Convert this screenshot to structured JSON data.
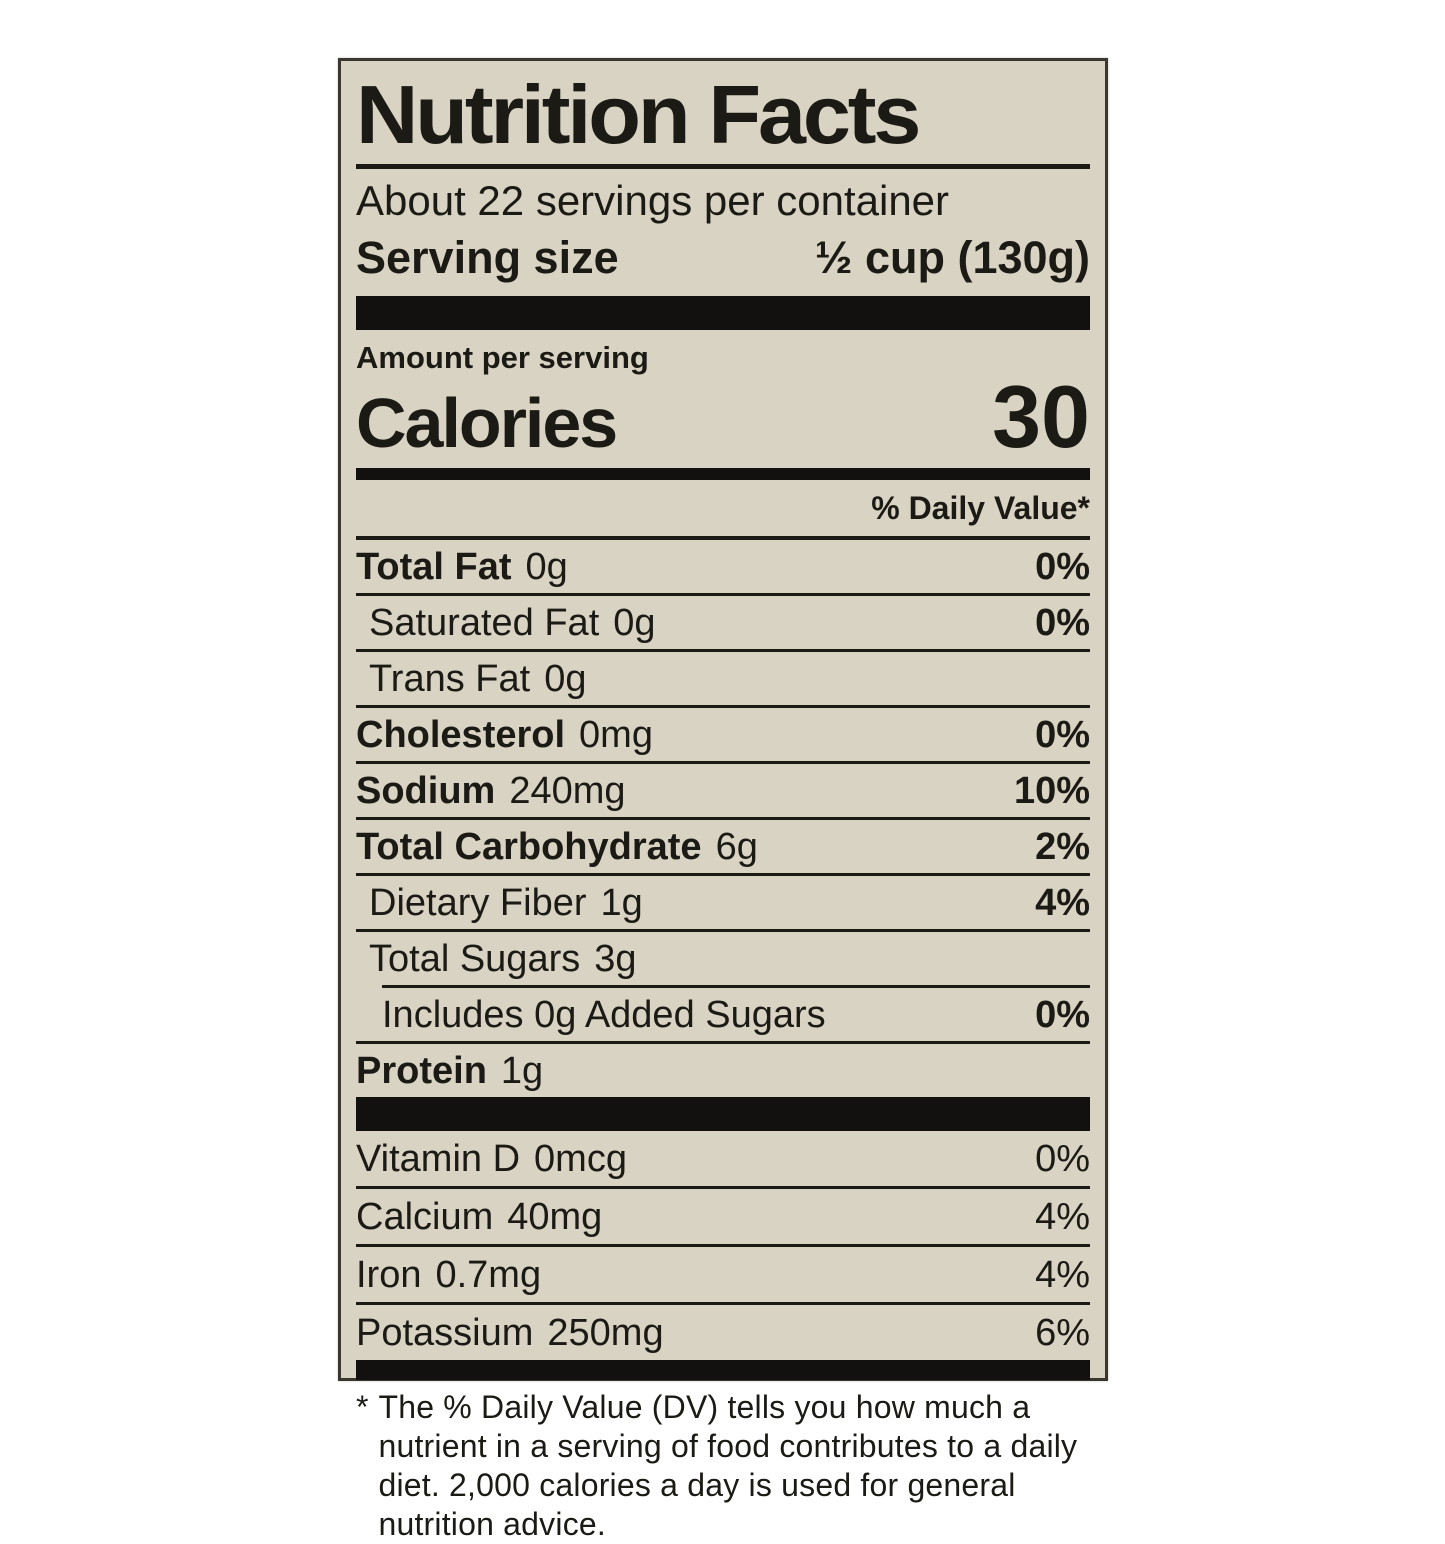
{
  "label": {
    "title": "Nutrition Facts",
    "servings_per_container": "About 22 servings per container",
    "serving_size_label": "Serving size",
    "serving_size_value": "½ cup (130g)",
    "amount_per_serving": "Amount per serving",
    "calories_label": "Calories",
    "calories_value": "30",
    "daily_value_header": "% Daily Value*",
    "nutrients": [
      {
        "name": "Total Fat",
        "amount": "0g",
        "dv": "0%",
        "bold": true,
        "indent": 0
      },
      {
        "name": "Saturated Fat",
        "amount": "0g",
        "dv": "0%",
        "bold": false,
        "indent": 1
      },
      {
        "name": "Trans Fat",
        "amount": "0g",
        "dv": "",
        "bold": false,
        "indent": 1
      },
      {
        "name": "Cholesterol",
        "amount": "0mg",
        "dv": "0%",
        "bold": true,
        "indent": 0
      },
      {
        "name": "Sodium",
        "amount": "240mg",
        "dv": "10%",
        "bold": true,
        "indent": 0
      },
      {
        "name": "Total Carbohydrate",
        "amount": "6g",
        "dv": "2%",
        "bold": true,
        "indent": 0
      },
      {
        "name": "Dietary Fiber",
        "amount": "1g",
        "dv": "4%",
        "bold": false,
        "indent": 1
      },
      {
        "name": "Total Sugars",
        "amount": "3g",
        "dv": "",
        "bold": false,
        "indent": 1
      },
      {
        "name": "Includes 0g Added Sugars",
        "amount": "",
        "dv": "0%",
        "bold": false,
        "indent": 2
      },
      {
        "name": "Protein",
        "amount": "1g",
        "dv": "",
        "bold": true,
        "indent": 0
      }
    ],
    "micronutrients": [
      {
        "name": "Vitamin D",
        "amount": "0mcg",
        "dv": "0%"
      },
      {
        "name": "Calcium",
        "amount": "40mg",
        "dv": "4%"
      },
      {
        "name": "Iron",
        "amount": "0.7mg",
        "dv": "4%"
      },
      {
        "name": "Potassium",
        "amount": "250mg",
        "dv": "6%"
      }
    ],
    "footnote_marker": "*",
    "footnote": "The % Daily Value (DV) tells you how much a nutrient in a serving of food contributes to a daily diet. 2,000 calories a day is used for general nutrition advice."
  },
  "colors": {
    "page_background": "#ffffff",
    "label_background": "#d8d3c2",
    "text": "#1c1a15",
    "bar": "#121110"
  }
}
